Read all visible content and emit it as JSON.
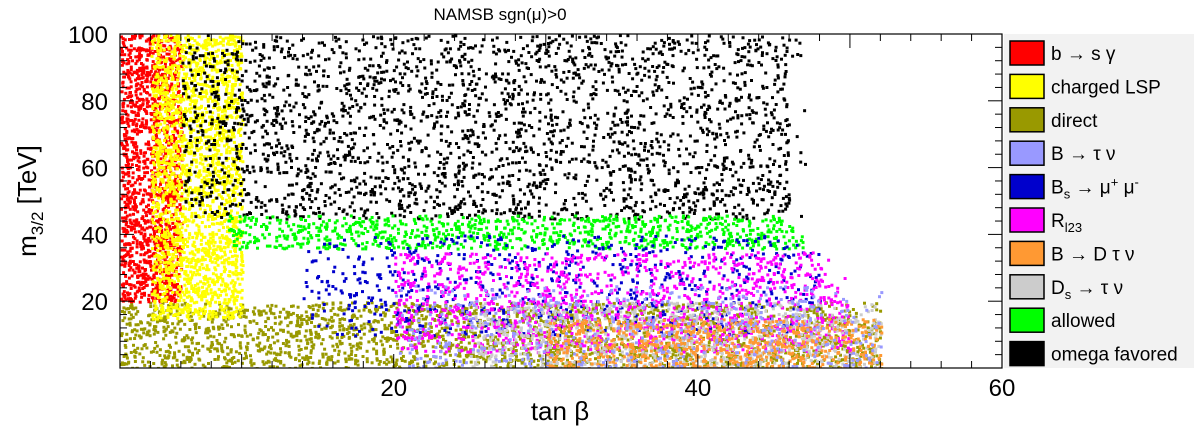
{
  "chart_data": {
    "type": "scatter",
    "title": "NAMSB    sgn(μ)>0",
    "xlabel": "tan β",
    "ylabel": "m3/2 [TeV]",
    "xlim": [
      2,
      60
    ],
    "ylim": [
      0,
      100
    ],
    "x_ticks": [
      20,
      40,
      60
    ],
    "y_ticks": [
      20,
      40,
      60,
      80,
      100
    ],
    "grid": false,
    "legend_placement": "right",
    "series": [
      {
        "name": "b → s γ",
        "color": "#ff0000"
      },
      {
        "name": "charged LSP",
        "color": "#ffff00"
      },
      {
        "name": "direct",
        "color": "#999900"
      },
      {
        "name": "B → τ ν",
        "color": "#9999ff"
      },
      {
        "name": "Bs → μ+ μ-",
        "color": "#0000cc"
      },
      {
        "name": "Rl23",
        "color": "#ff00ff"
      },
      {
        "name": "B → D τ ν",
        "color": "#ff9933"
      },
      {
        "name": "Ds → τ ν",
        "color": "#cccccc"
      },
      {
        "name": "allowed",
        "color": "#00ff00"
      },
      {
        "name": "omega favored",
        "color": "#000000"
      }
    ],
    "regions": [
      {
        "series": "direct",
        "x": [
          2,
          52
        ],
        "y": [
          0,
          20
        ]
      },
      {
        "series": "b → s γ",
        "x": [
          2,
          6
        ],
        "y": [
          20,
          100
        ]
      },
      {
        "series": "charged LSP",
        "x": [
          4,
          10
        ],
        "y": [
          15,
          100
        ]
      },
      {
        "series": "omega favored",
        "x": [
          6,
          47
        ],
        "y": [
          45,
          100
        ]
      },
      {
        "series": "allowed",
        "x": [
          9,
          47
        ],
        "y": [
          36,
          46
        ]
      },
      {
        "series": "Bs → μ+ μ-",
        "x": [
          14,
          48
        ],
        "y": [
          10,
          40
        ]
      },
      {
        "series": "Rl23",
        "x": [
          20,
          50
        ],
        "y": [
          5,
          35
        ]
      },
      {
        "series": "Ds → τ ν",
        "x": [
          25,
          52
        ],
        "y": [
          0,
          20
        ]
      },
      {
        "series": "B → D τ ν",
        "x": [
          30,
          52
        ],
        "y": [
          0,
          15
        ]
      },
      {
        "series": "B → τ ν",
        "x": [
          20,
          52
        ],
        "y": [
          0,
          25
        ]
      }
    ]
  }
}
